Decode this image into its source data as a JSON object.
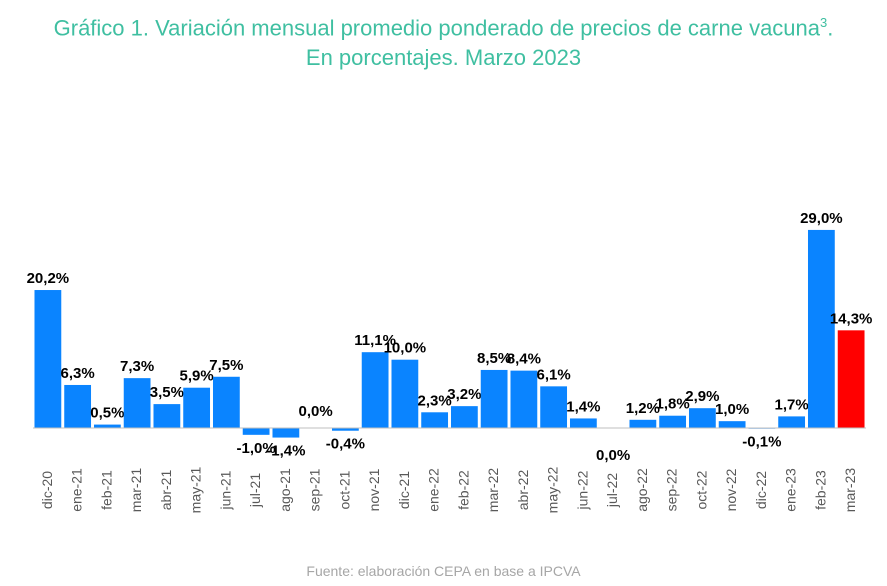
{
  "chart_data": {
    "type": "bar",
    "title_line1": "Gráfico 1. Variación mensual promedio ponderado de precios de carne vacuna",
    "title_superscript": "3",
    "title_line1_end": ".",
    "title_line2": "En porcentajes. Marzo 2023",
    "source": "Fuente: elaboración CEPA en base a IPCVA",
    "categories": [
      "dic-20",
      "ene-21",
      "feb-21",
      "mar-21",
      "abr-21",
      "may-21",
      "jun-21",
      "jul-21",
      "ago-21",
      "sep-21",
      "oct-21",
      "nov-21",
      "dic-21",
      "ene-22",
      "feb-22",
      "mar-22",
      "abr-22",
      "may-22",
      "jun-22",
      "jul-22",
      "ago-22",
      "sep-22",
      "oct-22",
      "nov-22",
      "dic-22",
      "ene-23",
      "feb-23",
      "mar-23"
    ],
    "values": [
      20.2,
      6.3,
      0.5,
      7.3,
      3.5,
      5.9,
      7.5,
      -1.0,
      -1.4,
      0.0,
      -0.4,
      11.1,
      10.0,
      2.3,
      3.2,
      8.5,
      8.4,
      6.1,
      1.4,
      0.0,
      1.2,
      1.8,
      2.9,
      1.0,
      -0.1,
      1.7,
      29.0,
      14.3
    ],
    "data_labels": [
      "20,2%",
      "6,3%",
      "0,5%",
      "7,3%",
      "3,5%",
      "5,9%",
      "7,5%",
      "-1,0%",
      "-1,4%",
      "0,0%",
      "-0,4%",
      "11,1%",
      "10,0%",
      "2,3%",
      "3,2%",
      "8,5%",
      "8,4%",
      "6,1%",
      "1,4%",
      "0,0%",
      "1,2%",
      "1,8%",
      "2,9%",
      "1,0%",
      "-0,1%",
      "1,7%",
      "29,0%",
      "14,3%"
    ],
    "colors": {
      "bar": "#0a84ff",
      "highlight": "#ff0000",
      "title": "#3fbfa1",
      "source": "#a6a6a6",
      "axis": "#bfbfbf",
      "tick_text": "#595959",
      "label_text": "#000000"
    },
    "highlight_index": 27,
    "grid": false,
    "legend": "none"
  }
}
